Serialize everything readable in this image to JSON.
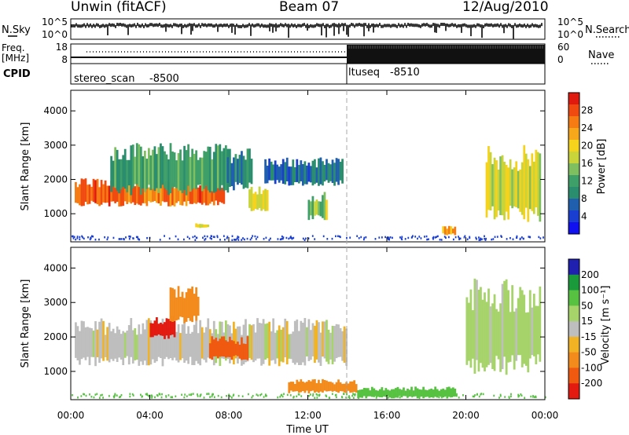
{
  "header": {
    "title_left": "Unwin (fitACF)",
    "title_center": "Beam 07",
    "title_right": "12/Aug/2010"
  },
  "noise_panel": {
    "left_label": "N.Sky",
    "right_label": "N.Search",
    "left_ticks": [
      "10^5",
      "10^0"
    ],
    "right_ticks": [
      "10^5",
      "10^0"
    ]
  },
  "freq_panel": {
    "left_label_1": "Freq.",
    "left_label_2": "[MHz]",
    "right_label": "Nave",
    "left_ticks": [
      "18",
      "8"
    ],
    "right_ticks": [
      "60",
      "0"
    ]
  },
  "cpid_panel": {
    "label": "CPID",
    "modes": [
      {
        "name": "stereo_scan",
        "id": "-8500",
        "start_hour": 0
      },
      {
        "name": "ltuseq",
        "id": "-8510",
        "start_hour": 14
      }
    ]
  },
  "time_axis": {
    "label": "Time UT",
    "ticks": [
      "00:00",
      "04:00",
      "08:00",
      "12:00",
      "16:00",
      "20:00",
      "00:00"
    ]
  },
  "chart_data": [
    {
      "type": "heatmap",
      "name": "Power",
      "xlabel": "Time UT",
      "ylabel": "Slant Range [km]",
      "xlim": [
        0,
        24
      ],
      "ylim": [
        180,
        4600
      ],
      "yticks": [
        "1000",
        "2000",
        "3000",
        "4000"
      ],
      "colorbar": {
        "label": "Power [dB]",
        "ticks": [
          "28",
          "24",
          "20",
          "16",
          "12",
          "8",
          "4"
        ],
        "colors": [
          "#e11a10",
          "#f04a10",
          "#f57b12",
          "#f7a81a",
          "#f5d21c",
          "#c8d43a",
          "#7fbf60",
          "#3f9f68",
          "#2a8e6e",
          "#1f5fae",
          "#1a3fd0",
          "#1010f0"
        ]
      },
      "regions": [
        {
          "t0": 0.2,
          "t1": 7.8,
          "r0": 1300,
          "r1": 1900,
          "level": 26
        },
        {
          "t0": 2.0,
          "t1": 8.0,
          "r0": 1700,
          "r1": 2800,
          "level": 12
        },
        {
          "t0": 7.8,
          "t1": 9.2,
          "r0": 1800,
          "r1": 2700,
          "level": 10
        },
        {
          "t0": 9.0,
          "t1": 10.0,
          "r0": 1100,
          "r1": 1700,
          "level": 18
        },
        {
          "t0": 9.8,
          "t1": 13.8,
          "r0": 1900,
          "r1": 2500,
          "level": 8
        },
        {
          "t0": 12.0,
          "t1": 13.0,
          "r0": 900,
          "r1": 1500,
          "level": 16
        },
        {
          "t0": 6.3,
          "t1": 7.0,
          "r0": 600,
          "r1": 700,
          "level": 20
        },
        {
          "t0": 18.8,
          "t1": 19.5,
          "r0": 400,
          "r1": 600,
          "level": 22
        },
        {
          "t0": 21.0,
          "t1": 23.8,
          "r0": 1000,
          "r1": 2600,
          "level": 18
        }
      ]
    },
    {
      "type": "heatmap",
      "name": "Velocity",
      "xlabel": "Time UT",
      "ylabel": "Slant Range [km]",
      "xlim": [
        0,
        24
      ],
      "ylim": [
        180,
        4600
      ],
      "yticks": [
        "1000",
        "2000",
        "3000",
        "4000"
      ],
      "colorbar": {
        "label": "Velocity [m s⁻¹]",
        "ticks": [
          "200",
          "100",
          "50",
          "15",
          "-15",
          "-50",
          "-100",
          "-200"
        ],
        "colors": [
          "#2020b0",
          "#1a9a3a",
          "#57c242",
          "#a6d36a",
          "#bebebe",
          "#f1b323",
          "#f38b1c",
          "#f05a10",
          "#e21a10"
        ]
      },
      "regions": [
        {
          "t0": 0.2,
          "t1": 14.0,
          "r0": 1300,
          "r1": 2300,
          "velocity": 0
        },
        {
          "t0": 4.0,
          "t1": 5.3,
          "r0": 2000,
          "r1": 2500,
          "velocity": -200
        },
        {
          "t0": 7.0,
          "t1": 9.0,
          "r0": 1400,
          "r1": 1900,
          "velocity": -100
        },
        {
          "t0": 5.0,
          "t1": 6.5,
          "r0": 2500,
          "r1": 3300,
          "velocity": -50
        },
        {
          "t0": 11.0,
          "t1": 14.5,
          "r0": 400,
          "r1": 700,
          "velocity": -50
        },
        {
          "t0": 14.5,
          "t1": 19.5,
          "r0": 250,
          "r1": 500,
          "velocity": 50
        },
        {
          "t0": 20.0,
          "t1": 23.8,
          "r0": 1200,
          "r1": 3200,
          "velocity": 15
        }
      ]
    }
  ]
}
